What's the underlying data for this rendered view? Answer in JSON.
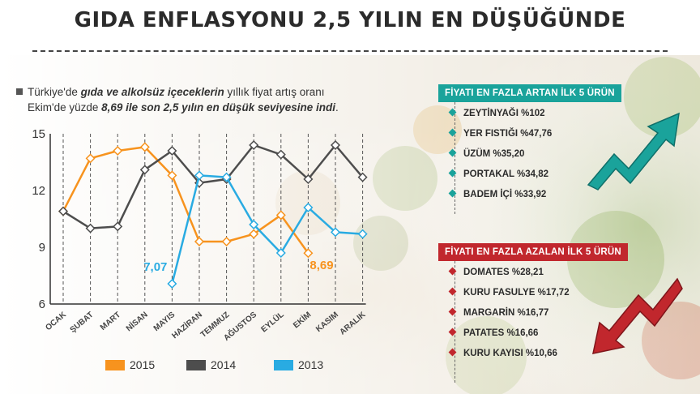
{
  "title": "GIDA ENFLASYONU 2,5 YILIN EN DÜŞÜĞÜNDE",
  "intro": {
    "line1_pre": "Türkiye'de ",
    "line1_bold": "gıda ve alkolsüz içeceklerin",
    "line1_post": " yıllık fiyat artış oranı",
    "line2_pre": "Ekim'de yüzde ",
    "line2_bold": "8,69 ile son 2,5 yılın en düşük seviyesine indi",
    "line2_post": "."
  },
  "chart_data": {
    "type": "line",
    "categories": [
      "OCAK",
      "ŞUBAT",
      "MART",
      "NİSAN",
      "MAYIS",
      "HAZİRAN",
      "TEMMUZ",
      "AĞUSTOS",
      "EYLÜL",
      "EKİM",
      "KASIM",
      "ARALIK"
    ],
    "yticks": [
      "15",
      "12",
      "9",
      "6"
    ],
    "ylim": [
      6,
      15
    ],
    "grid": "vertical dashed",
    "legend_position": "bottom",
    "series": [
      {
        "name": "2015",
        "color": "#f7931e",
        "values": [
          10.9,
          13.7,
          14.1,
          14.3,
          12.8,
          9.3,
          9.3,
          9.7,
          10.7,
          8.69,
          null,
          null
        ]
      },
      {
        "name": "2014",
        "color": "#4d4d4d",
        "values": [
          10.9,
          10.0,
          10.1,
          13.1,
          14.1,
          12.4,
          12.6,
          14.4,
          13.9,
          12.6,
          14.4,
          12.7
        ]
      },
      {
        "name": "2013",
        "color": "#29abe2",
        "values": [
          null,
          null,
          null,
          null,
          7.07,
          12.8,
          12.7,
          10.2,
          8.7,
          11.1,
          9.8,
          9.7
        ]
      }
    ],
    "annotations": [
      {
        "text": "7,07",
        "series": "2013",
        "category": "MAYIS",
        "color": "#29abe2"
      },
      {
        "text": "8,69",
        "series": "2015",
        "category": "EKİM",
        "color": "#f7931e"
      }
    ]
  },
  "up_panel": {
    "title": "FİYATI EN FAZLA ARTAN İLK 5 ÜRÜN",
    "color": "#1aa39b",
    "items": [
      "ZEYTİNYAĞI %102",
      "YER FISTIĞI %47,76",
      "ÜZÜM %35,20",
      "PORTAKAL %34,82",
      "BADEM İÇİ %33,92"
    ]
  },
  "down_panel": {
    "title": "FİYATI EN FAZLA AZALAN İLK 5 ÜRÜN",
    "color": "#c1272d",
    "items": [
      "DOMATES %28,21",
      "KURU FASULYE %17,72",
      "MARGARİN %16,77",
      "PATATES %16,66",
      "KURU KAYISI %10,66"
    ]
  }
}
